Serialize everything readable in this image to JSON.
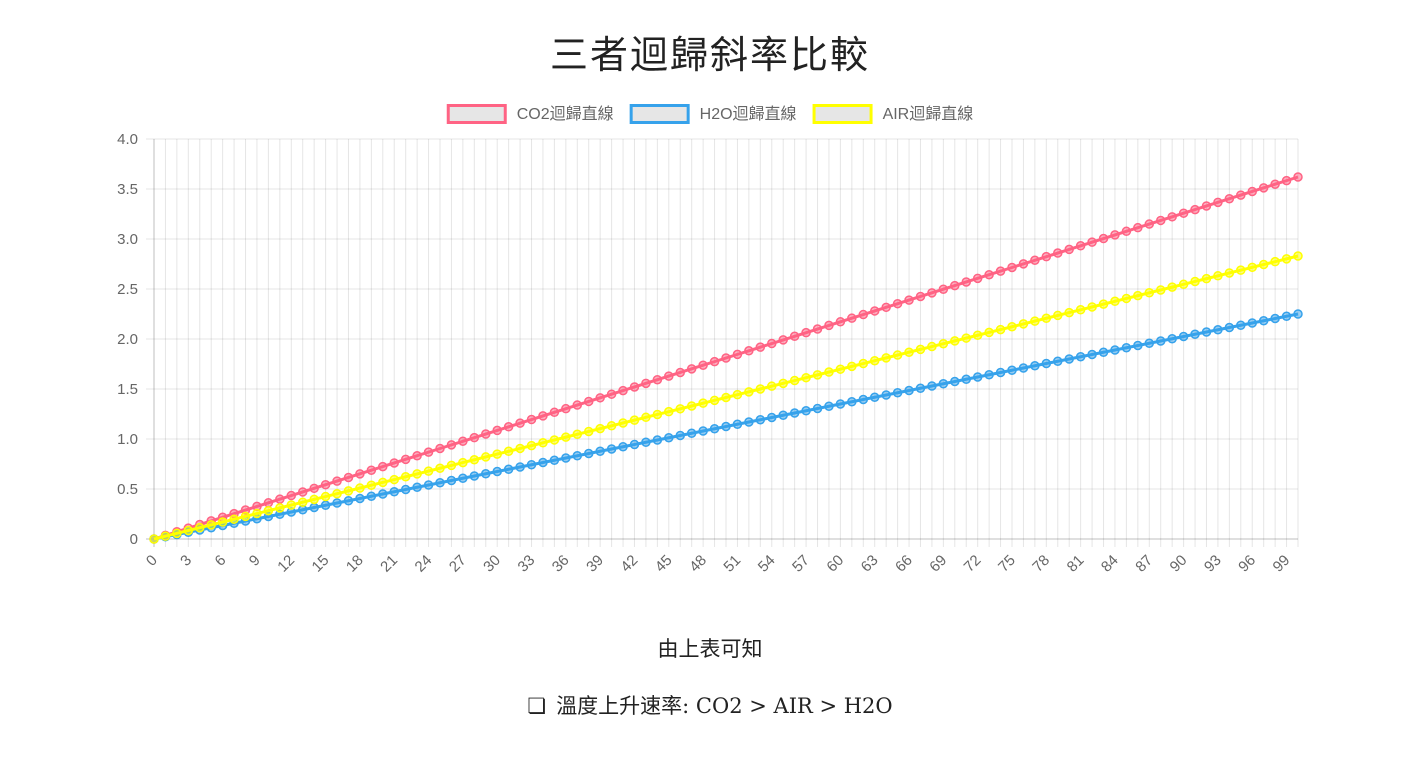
{
  "chart_data": {
    "type": "line",
    "title": "三者迴歸斜率比較",
    "x_range": [
      0,
      100
    ],
    "x_tick_step": 3,
    "ylim": [
      0,
      4.0
    ],
    "y_ticks": [
      "0",
      "0.5",
      "1.0",
      "1.5",
      "2.0",
      "2.5",
      "3.0",
      "3.5",
      "4.0"
    ],
    "grid": true,
    "legend_position": "top",
    "series": [
      {
        "name": "CO2迴歸直線",
        "slope": 0.0362,
        "intercept": 0,
        "color": "#ff6384"
      },
      {
        "name": "H2O迴歸直線",
        "slope": 0.0225,
        "intercept": 0,
        "color": "#36a2eb"
      },
      {
        "name": "AIR迴歸直線",
        "slope": 0.0283,
        "intercept": 0,
        "color": "#ffff00"
      }
    ]
  },
  "summary": {
    "intro": "由上表可知",
    "bullet_icon": "ballot-box-icon",
    "conclusion": "溫度上升速率: CO2 > AIR > H2O"
  }
}
